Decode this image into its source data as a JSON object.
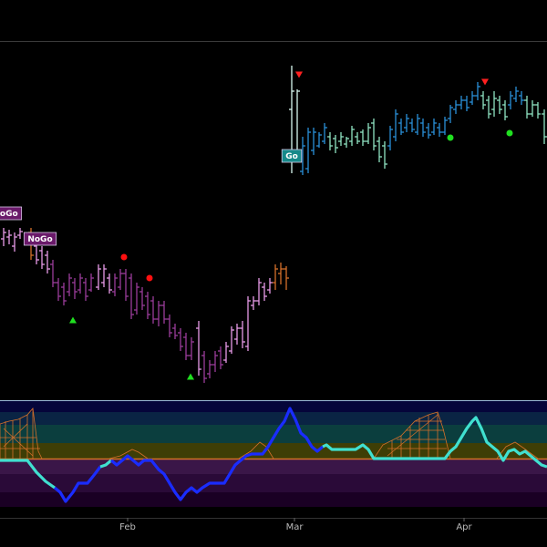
{
  "chart_data": [
    {
      "type": "ohlc",
      "xlim": [
        0,
        600
      ],
      "ylim": [
        0,
        393
      ],
      "xticks": [
        {
          "value": 140,
          "label": "Feb"
        },
        {
          "value": 323,
          "label": "Mar"
        },
        {
          "value": 509,
          "label": "Apr"
        }
      ],
      "x": [
        4,
        10,
        16,
        22,
        34,
        40,
        46,
        52,
        58,
        64,
        70,
        76,
        82,
        88,
        94,
        100,
        108,
        114,
        120,
        126,
        132,
        138,
        144,
        150,
        156,
        162,
        168,
        174,
        180,
        186,
        192,
        198,
        204,
        210,
        218,
        224,
        230,
        236,
        242,
        248,
        254,
        260,
        266,
        272,
        278,
        284,
        290,
        296,
        302,
        308,
        314,
        320,
        326,
        332,
        338,
        344,
        350,
        356,
        362,
        368,
        374,
        380,
        386,
        392,
        398,
        404,
        410,
        416,
        422,
        428,
        434,
        440,
        446,
        452,
        458,
        464,
        470,
        476,
        482,
        488,
        494,
        500,
        506,
        512,
        518,
        524,
        530,
        536,
        542,
        548,
        554,
        560,
        566,
        572,
        578,
        584,
        590,
        597
      ],
      "high": [
        188,
        186,
        183,
        188,
        188,
        176,
        168,
        163,
        153,
        133,
        128,
        138,
        133,
        138,
        133,
        138,
        148,
        148,
        138,
        138,
        143,
        143,
        138,
        128,
        123,
        118,
        113,
        108,
        108,
        93,
        83,
        78,
        73,
        68,
        86,
        53,
        43,
        53,
        58,
        63,
        80,
        83,
        86,
        113,
        113,
        133,
        128,
        133,
        148,
        150,
        146,
        366,
        340,
        288,
        298,
        298,
        293,
        303,
        293,
        290,
        293,
        288,
        300,
        293,
        296,
        303,
        308,
        288,
        283,
        300,
        318,
        308,
        313,
        308,
        313,
        308,
        303,
        308,
        303,
        310,
        323,
        328,
        333,
        333,
        338,
        348,
        338,
        333,
        338,
        333,
        328,
        338,
        343,
        338,
        333,
        328,
        326,
        318
      ],
      "low": [
        168,
        170,
        162,
        176,
        153,
        148,
        143,
        138,
        123,
        108,
        103,
        113,
        110,
        116,
        108,
        118,
        120,
        123,
        116,
        113,
        120,
        108,
        88,
        93,
        98,
        88,
        83,
        80,
        83,
        68,
        66,
        53,
        43,
        43,
        26,
        18,
        23,
        30,
        33,
        40,
        50,
        60,
        56,
        53,
        98,
        103,
        108,
        116,
        120,
        126,
        120,
        248,
        270,
        246,
        248,
        268,
        276,
        280,
        273,
        270,
        278,
        276,
        278,
        280,
        278,
        280,
        273,
        260,
        253,
        273,
        283,
        290,
        293,
        293,
        290,
        288,
        286,
        290,
        288,
        290,
        303,
        313,
        318,
        316,
        323,
        328,
        318,
        308,
        310,
        313,
        306,
        318,
        326,
        323,
        308,
        310,
        308,
        280
      ],
      "open": [
        176,
        178,
        168,
        180,
        183,
        168,
        163,
        158,
        148,
        128,
        123,
        118,
        128,
        120,
        128,
        120,
        123,
        128,
        133,
        118,
        123,
        138,
        133,
        98,
        118,
        113,
        108,
        88,
        103,
        88,
        78,
        73,
        68,
        48,
        78,
        48,
        28,
        38,
        53,
        43,
        53,
        66,
        78,
        58,
        103,
        108,
        123,
        120,
        128,
        138,
        143,
        318,
        273,
        250,
        253,
        273,
        278,
        283,
        288,
        286,
        283,
        280,
        283,
        288,
        293,
        283,
        303,
        283,
        278,
        278,
        288,
        303,
        298,
        303,
        293,
        303,
        298,
        293,
        298,
        293,
        308,
        318,
        323,
        328,
        326,
        333,
        333,
        328,
        318,
        328,
        323,
        323,
        330,
        333,
        328,
        313,
        323,
        313
      ],
      "close": [
        183,
        180,
        178,
        184,
        158,
        153,
        148,
        143,
        128,
        113,
        108,
        133,
        118,
        133,
        113,
        133,
        143,
        143,
        120,
        133,
        138,
        113,
        93,
        123,
        103,
        93,
        88,
        103,
        88,
        73,
        70,
        58,
        48,
        63,
        33,
        23,
        38,
        48,
        38,
        58,
        76,
        78,
        63,
        108,
        108,
        128,
        113,
        128,
        143,
        143,
        133,
        338,
        338,
        278,
        293,
        293,
        290,
        298,
        278,
        276,
        288,
        286,
        296,
        283,
        283,
        298,
        278,
        266,
        258,
        296,
        313,
        293,
        308,
        296,
        308,
        293,
        290,
        303,
        293,
        306,
        320,
        323,
        328,
        320,
        333,
        343,
        323,
        313,
        330,
        318,
        310,
        333,
        338,
        328,
        313,
        323,
        313,
        288
      ],
      "colors": [
        "#e89be8",
        "#e89be8",
        "#e89be8",
        "#e89be8",
        "#d4702a",
        "#e89be8",
        "#e89be8",
        "#e89be8",
        "#9a3c9a",
        "#9a3c9a",
        "#9a3c9a",
        "#9a3c9a",
        "#9a3c9a",
        "#9a3c9a",
        "#9a3c9a",
        "#9a3c9a",
        "#e89be8",
        "#e89be8",
        "#e89be8",
        "#9a3c9a",
        "#9a3c9a",
        "#9a3c9a",
        "#9a3c9a",
        "#9a3c9a",
        "#9a3c9a",
        "#9a3c9a",
        "#9a3c9a",
        "#9a3c9a",
        "#9a3c9a",
        "#9a3c9a",
        "#9a3c9a",
        "#9a3c9a",
        "#9a3c9a",
        "#9a3c9a",
        "#e89be8",
        "#9a3c9a",
        "#9a3c9a",
        "#9a3c9a",
        "#9a3c9a",
        "#e89be8",
        "#e89be8",
        "#e89be8",
        "#e89be8",
        "#e89be8",
        "#e89be8",
        "#e89be8",
        "#e89be8",
        "#e89be8",
        "#d4702a",
        "#d4702a",
        "#d4702a",
        "#d8f8f0",
        "#d8f8f0",
        "#2a8fd8",
        "#2a8fd8",
        "#2a8fd8",
        "#2a8fd8",
        "#2a8fd8",
        "#8fe3c3",
        "#8fe3c3",
        "#8fe3c3",
        "#8fe3c3",
        "#8fe3c3",
        "#8fe3c3",
        "#8fe3c3",
        "#8fe3c3",
        "#8fe3c3",
        "#8fe3c3",
        "#8fe3c3",
        "#2a8fd8",
        "#2a8fd8",
        "#2a8fd8",
        "#2a8fd8",
        "#2a8fd8",
        "#2a8fd8",
        "#2a8fd8",
        "#2a8fd8",
        "#2a8fd8",
        "#2a8fd8",
        "#2a8fd8",
        "#2a8fd8",
        "#2a8fd8",
        "#2a8fd8",
        "#2a8fd8",
        "#2a8fd8",
        "#2a8fd8",
        "#8fe3c3",
        "#8fe3c3",
        "#8fe3c3",
        "#8fe3c3",
        "#8fe3c3",
        "#2a8fd8",
        "#2a8fd8",
        "#2a8fd8",
        "#8fe3c3",
        "#8fe3c3",
        "#8fe3c3",
        "#8fe3c3"
      ],
      "markers": [
        {
          "shape": "triangle-down",
          "color": "#ff2020",
          "x": 328,
          "y": 356
        },
        {
          "shape": "triangle-down",
          "color": "#ff2020",
          "x": 532,
          "y": 348
        },
        {
          "shape": "dot",
          "color": "#20e020",
          "x": 494,
          "y": 287
        },
        {
          "shape": "dot",
          "color": "#20e020",
          "x": 559,
          "y": 292
        },
        {
          "shape": "dot",
          "color": "#ff1010",
          "x": 136,
          "y": 156
        },
        {
          "shape": "dot",
          "color": "#ff1010",
          "x": 164,
          "y": 133
        },
        {
          "shape": "triangle-up",
          "color": "#20e020",
          "x": 80,
          "y": 87
        },
        {
          "shape": "triangle-up",
          "color": "#20e020",
          "x": 209,
          "y": 25
        }
      ],
      "annotations": [
        {
          "text": "NoGo",
          "x": 6,
          "y": 204,
          "color": "#6a1a6a"
        },
        {
          "text": "NoGo",
          "x": 44,
          "y": 176,
          "color": "#6a1a6a"
        },
        {
          "text": "Go",
          "x": 320,
          "y": 267,
          "color": "#168a8a"
        }
      ]
    },
    {
      "type": "line",
      "xlim": [
        0,
        600
      ],
      "ylim": [
        -6.5,
        6.3
      ],
      "x": [
        0,
        10,
        20,
        30,
        40,
        50,
        60,
        66,
        72,
        80,
        86,
        96,
        104,
        110,
        116,
        122,
        128,
        134,
        140,
        146,
        152,
        158,
        166,
        174,
        180,
        186,
        192,
        198,
        204,
        210,
        216,
        222,
        230,
        238,
        246,
        252,
        258,
        264,
        270,
        276,
        282,
        288,
        294,
        300,
        306,
        312,
        318,
        324,
        330,
        336,
        342,
        348,
        354,
        358,
        364,
        372,
        380,
        390,
        398,
        404,
        410,
        420,
        430,
        440,
        450,
        460,
        470,
        480,
        488,
        494,
        500,
        506,
        512,
        518,
        522,
        528,
        534,
        540,
        546,
        552,
        558,
        564,
        570,
        576,
        582,
        588,
        594,
        600
      ],
      "values": [
        -0.2,
        -0.2,
        -0.2,
        -0.2,
        -1.5,
        -2.5,
        -3.2,
        -3.7,
        -4.7,
        -3.7,
        -2.7,
        -2.7,
        -1.7,
        -0.9,
        -0.7,
        -0.2,
        -0.7,
        -0.2,
        0.3,
        -0.2,
        -0.7,
        -0.2,
        -0.2,
        -1.2,
        -1.7,
        -2.7,
        -3.7,
        -4.5,
        -3.7,
        -3.2,
        -3.7,
        -3.2,
        -2.7,
        -2.7,
        -2.7,
        -1.7,
        -0.7,
        -0.2,
        0.3,
        0.5,
        0.5,
        0.5,
        1.3,
        2.3,
        3.3,
        4.1,
        5.5,
        4.3,
        2.8,
        2.3,
        1.3,
        0.8,
        1.3,
        1.5,
        1,
        1,
        1,
        1,
        1.5,
        1,
        0,
        0,
        0,
        0,
        0,
        0,
        0,
        0,
        0,
        0.8,
        1.3,
        2.3,
        3.3,
        4.1,
        4.5,
        3.3,
        1.8,
        1.3,
        0.8,
        -0.2,
        0.8,
        1,
        0.5,
        0.8,
        0.3,
        -0.2,
        -0.7,
        -0.9
      ],
      "colors": [
        "#40e0d0",
        "#40e0d0",
        "#40e0d0",
        "#40e0d0",
        "#40e0d0",
        "#40e0d0",
        "#40e0d0",
        "#1a2cff",
        "#1a2cff",
        "#1a2cff",
        "#1a2cff",
        "#1a2cff",
        "#1a2cff",
        "#1a2cff",
        "#40e0d0",
        "#40e0d0",
        "#1a2cff",
        "#1a2cff",
        "#1a2cff",
        "#1a2cff",
        "#1a2cff",
        "#1a2cff",
        "#1a2cff",
        "#1a2cff",
        "#1a2cff",
        "#1a2cff",
        "#1a2cff",
        "#1a2cff",
        "#1a2cff",
        "#1a2cff",
        "#1a2cff",
        "#1a2cff",
        "#1a2cff",
        "#1a2cff",
        "#1a2cff",
        "#1a2cff",
        "#1a2cff",
        "#1a2cff",
        "#1a2cff",
        "#1a2cff",
        "#1a2cff",
        "#1a2cff",
        "#1a2cff",
        "#1a2cff",
        "#1a2cff",
        "#1a2cff",
        "#1a2cff",
        "#1a2cff",
        "#1a2cff",
        "#1a2cff",
        "#1a2cff",
        "#1a2cff",
        "#1a2cff",
        "#40e0d0",
        "#40e0d0",
        "#40e0d0",
        "#40e0d0",
        "#40e0d0",
        "#40e0d0",
        "#40e0d0",
        "#40e0d0",
        "#40e0d0",
        "#40e0d0",
        "#40e0d0",
        "#40e0d0",
        "#40e0d0",
        "#40e0d0",
        "#40e0d0",
        "#40e0d0",
        "#40e0d0",
        "#40e0d0",
        "#40e0d0",
        "#40e0d0",
        "#40e0d0",
        "#40e0d0",
        "#40e0d0",
        "#40e0d0",
        "#40e0d0",
        "#40e0d0",
        "#40e0d0",
        "#40e0d0",
        "#40e0d0",
        "#40e0d0",
        "#40e0d0",
        "#40e0d0",
        "#40e0d0",
        "#40e0d0",
        "#40e0d0"
      ]
    }
  ]
}
